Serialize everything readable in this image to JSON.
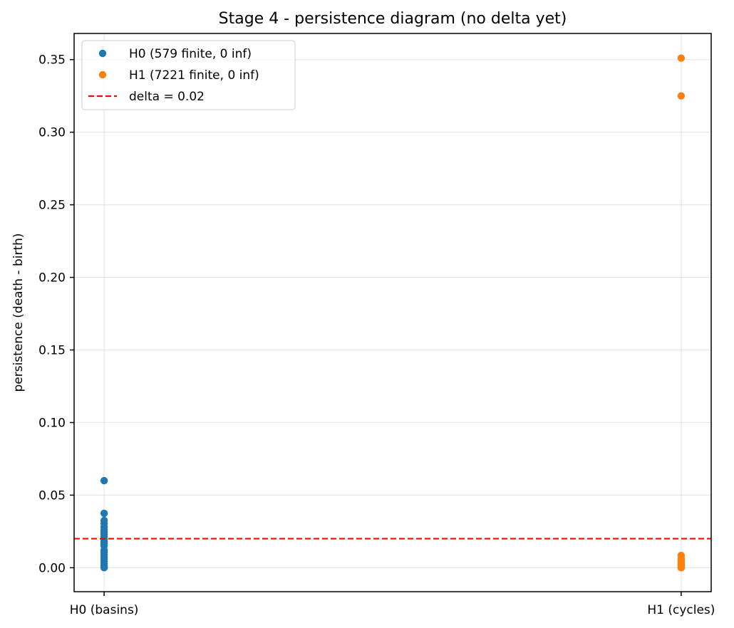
{
  "chart_data": {
    "type": "scatter",
    "title": "Stage 4 - persistence diagram (no delta yet)",
    "xlabel": "",
    "ylabel": "persistence  (death - birth)",
    "categories": [
      "H0 (basins)",
      "H1 (cycles)"
    ],
    "xlim": [
      -0.052,
      1.052
    ],
    "ylim": [
      -0.0165,
      0.368
    ],
    "yticks": [
      0.0,
      0.05,
      0.1,
      0.15,
      0.2,
      0.25,
      0.3,
      0.35
    ],
    "ytick_labels": [
      "0.00",
      "0.05",
      "0.10",
      "0.15",
      "0.20",
      "0.25",
      "0.30",
      "0.35"
    ],
    "grid": true,
    "legend_position": "upper-left",
    "series": [
      {
        "name": "H0 (579 finite, 0 inf)",
        "color": "#1f77b4",
        "x": 0,
        "values": [
          0.06,
          0.0375,
          0.0325,
          0.0305,
          0.028,
          0.026,
          0.0245,
          0.023,
          0.0215,
          0.0195,
          0.018,
          0.0165,
          0.015,
          0.012,
          0.0105,
          0.009,
          0.0075,
          0.006,
          0.0045,
          0.003,
          0.0015,
          0.0005,
          0.0
        ]
      },
      {
        "name": "H1 (7221 finite, 0 inf)",
        "color": "#ff7f0e",
        "x": 1,
        "values": [
          0.351,
          0.325,
          0.0085,
          0.0065,
          0.005,
          0.0035,
          0.0025,
          0.0015,
          0.0008,
          0.0002,
          0.0
        ]
      }
    ],
    "hline": {
      "name": "delta = 0.02",
      "y": 0.02,
      "color": "#ff0000",
      "style": "dashed"
    }
  }
}
